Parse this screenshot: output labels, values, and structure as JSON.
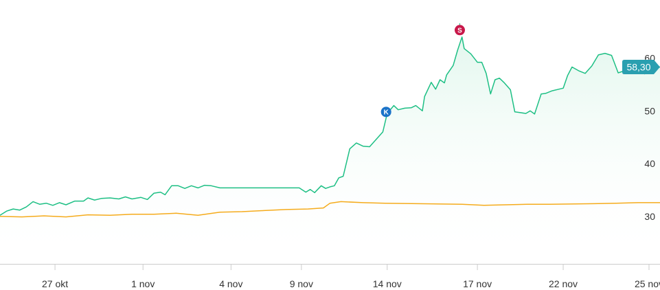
{
  "chart_data": {
    "type": "line",
    "title": "",
    "xlabel": "",
    "ylabel": "",
    "ylim": [
      21,
      71
    ],
    "xlim": [
      0,
      30
    ],
    "x_ticks": [
      {
        "x": 2.5,
        "label": "27 okt"
      },
      {
        "x": 6.5,
        "label": "1 nov"
      },
      {
        "x": 10.5,
        "label": "4 nov"
      },
      {
        "x": 13.7,
        "label": "9 nov"
      },
      {
        "x": 17.6,
        "label": "14 nov"
      },
      {
        "x": 21.7,
        "label": "17 nov"
      },
      {
        "x": 25.6,
        "label": "22 nov"
      },
      {
        "x": 29.5,
        "label": "25 nov"
      }
    ],
    "y_ticks": [
      {
        "y": 30,
        "label": "30"
      },
      {
        "y": 40,
        "label": "40"
      },
      {
        "y": 50,
        "label": "50"
      },
      {
        "y": 60,
        "label": "60"
      }
    ],
    "grid": false,
    "legend": "none",
    "colors": {
      "primary": "#1dbf84",
      "secondary": "#f5ab1b",
      "fill_top": "#e3f7ee",
      "price_tag": "#2a9fb0",
      "buy_marker": "#1a73c8",
      "sell_marker": "#c8184a",
      "axis": "#cccccc"
    },
    "series": [
      {
        "values": [
          [
            0,
            30.2
          ],
          [
            0.3,
            31.0
          ],
          [
            0.6,
            31.4
          ],
          [
            0.9,
            31.2
          ],
          [
            1.2,
            31.8
          ],
          [
            1.5,
            32.8
          ],
          [
            1.8,
            32.3
          ],
          [
            2.1,
            32.5
          ],
          [
            2.4,
            32.1
          ],
          [
            2.7,
            32.6
          ],
          [
            3.0,
            32.2
          ],
          [
            3.4,
            32.9
          ],
          [
            3.8,
            32.9
          ],
          [
            4.0,
            33.5
          ],
          [
            4.3,
            33.1
          ],
          [
            4.6,
            33.4
          ],
          [
            5.0,
            33.5
          ],
          [
            5.4,
            33.3
          ],
          [
            5.7,
            33.7
          ],
          [
            6.0,
            33.3
          ],
          [
            6.4,
            33.6
          ],
          [
            6.7,
            33.2
          ],
          [
            7.0,
            34.4
          ],
          [
            7.3,
            34.6
          ],
          [
            7.5,
            34.1
          ],
          [
            7.8,
            35.8
          ],
          [
            8.1,
            35.8
          ],
          [
            8.4,
            35.3
          ],
          [
            8.7,
            35.8
          ],
          [
            9.0,
            35.4
          ],
          [
            9.3,
            35.9
          ],
          [
            9.6,
            35.8
          ],
          [
            10.0,
            35.4
          ],
          [
            10.4,
            35.4
          ],
          [
            12.0,
            35.4
          ],
          [
            13.6,
            35.4
          ],
          [
            13.9,
            34.6
          ],
          [
            14.1,
            35.1
          ],
          [
            14.3,
            34.5
          ],
          [
            14.6,
            35.8
          ],
          [
            14.8,
            35.3
          ],
          [
            15.0,
            35.6
          ],
          [
            15.2,
            35.8
          ],
          [
            15.4,
            37.3
          ],
          [
            15.6,
            37.6
          ],
          [
            15.9,
            42.8
          ],
          [
            16.2,
            43.9
          ],
          [
            16.5,
            43.3
          ],
          [
            16.8,
            43.2
          ],
          [
            17.1,
            44.6
          ],
          [
            17.4,
            46.0
          ],
          [
            17.6,
            49.5
          ],
          [
            17.9,
            51.0
          ],
          [
            18.1,
            50.2
          ],
          [
            18.4,
            50.5
          ],
          [
            18.7,
            50.6
          ],
          [
            18.9,
            51.0
          ],
          [
            19.2,
            50.0
          ],
          [
            19.3,
            52.7
          ],
          [
            19.6,
            55.4
          ],
          [
            19.8,
            54.1
          ],
          [
            20.0,
            55.9
          ],
          [
            20.2,
            55.3
          ],
          [
            20.3,
            56.8
          ],
          [
            20.6,
            58.6
          ],
          [
            20.8,
            61.5
          ],
          [
            21.0,
            64.0
          ],
          [
            21.1,
            61.8
          ],
          [
            21.4,
            60.8
          ],
          [
            21.7,
            59.2
          ],
          [
            21.9,
            59.2
          ],
          [
            22.1,
            57.1
          ],
          [
            22.3,
            53.2
          ],
          [
            22.5,
            55.9
          ],
          [
            22.7,
            56.2
          ],
          [
            22.9,
            55.4
          ],
          [
            23.2,
            54.0
          ],
          [
            23.4,
            49.8
          ],
          [
            23.6,
            49.7
          ],
          [
            23.9,
            49.5
          ],
          [
            24.1,
            50.0
          ],
          [
            24.3,
            49.4
          ],
          [
            24.6,
            53.2
          ],
          [
            24.8,
            53.3
          ],
          [
            25.1,
            53.8
          ],
          [
            25.4,
            54.1
          ],
          [
            25.6,
            54.3
          ],
          [
            25.8,
            56.7
          ],
          [
            26.0,
            58.3
          ],
          [
            26.3,
            57.6
          ],
          [
            26.6,
            57.1
          ],
          [
            26.9,
            58.5
          ],
          [
            27.2,
            60.6
          ],
          [
            27.5,
            60.9
          ],
          [
            27.8,
            60.5
          ],
          [
            28.1,
            57.2
          ],
          [
            28.4,
            57.6
          ],
          [
            28.7,
            57.9
          ],
          [
            29.0,
            57.7
          ],
          [
            29.3,
            57.0
          ],
          [
            29.6,
            57.9
          ],
          [
            30.0,
            58.3
          ]
        ]
      },
      {
        "values": [
          [
            0,
            30.0
          ],
          [
            1.0,
            29.9
          ],
          [
            2.0,
            30.1
          ],
          [
            3.0,
            29.9
          ],
          [
            4.0,
            30.3
          ],
          [
            5.0,
            30.2
          ],
          [
            6.0,
            30.4
          ],
          [
            7.0,
            30.4
          ],
          [
            8.0,
            30.6
          ],
          [
            9.0,
            30.2
          ],
          [
            10.0,
            30.8
          ],
          [
            11.0,
            30.9
          ],
          [
            12.0,
            31.1
          ],
          [
            13.0,
            31.3
          ],
          [
            14.0,
            31.4
          ],
          [
            14.7,
            31.6
          ],
          [
            15.0,
            32.5
          ],
          [
            15.5,
            32.8
          ],
          [
            16.5,
            32.6
          ],
          [
            17.5,
            32.5
          ],
          [
            19.0,
            32.4
          ],
          [
            21.0,
            32.3
          ],
          [
            22.0,
            32.1
          ],
          [
            23.0,
            32.2
          ],
          [
            24.0,
            32.3
          ],
          [
            25.0,
            32.3
          ],
          [
            27.0,
            32.4
          ],
          [
            28.0,
            32.5
          ],
          [
            29.0,
            32.6
          ],
          [
            30.0,
            32.6
          ]
        ]
      }
    ],
    "annotations": [
      {
        "label": "K",
        "x": 17.55,
        "y": 49.8,
        "kind": "buy"
      },
      {
        "label": "S",
        "x": 20.9,
        "y": 65.3,
        "kind": "sell"
      }
    ],
    "price_label": {
      "value": "58,30",
      "y": 58.3
    }
  }
}
